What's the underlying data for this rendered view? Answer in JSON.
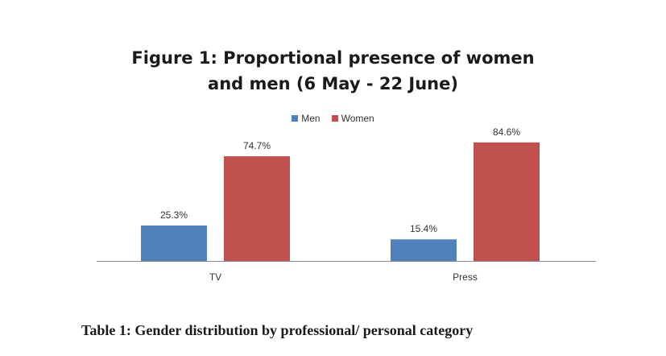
{
  "chart_data": {
    "type": "bar",
    "title": "Figure 1: Proportional presence of women and men (6 May - 22 June)",
    "title_lines": [
      "Figure 1: Proportional presence of women",
      "and men (6 May - 22 June)"
    ],
    "categories": [
      "TV",
      "Press"
    ],
    "series": [
      {
        "name": "Men",
        "color": "#4F81BD",
        "values": [
          25.3,
          15.4
        ],
        "labels": [
          "25.3%",
          "15.4%"
        ]
      },
      {
        "name": "Women",
        "color": "#C0504D",
        "values": [
          74.7,
          84.6
        ],
        "labels": [
          "74.7%",
          "84.6%"
        ]
      }
    ],
    "ylim": [
      0,
      100
    ],
    "legend_position": "top",
    "grid": false,
    "xlabel": "",
    "ylabel": ""
  },
  "caption": "Table 1: Gender distribution by professional/ personal category"
}
